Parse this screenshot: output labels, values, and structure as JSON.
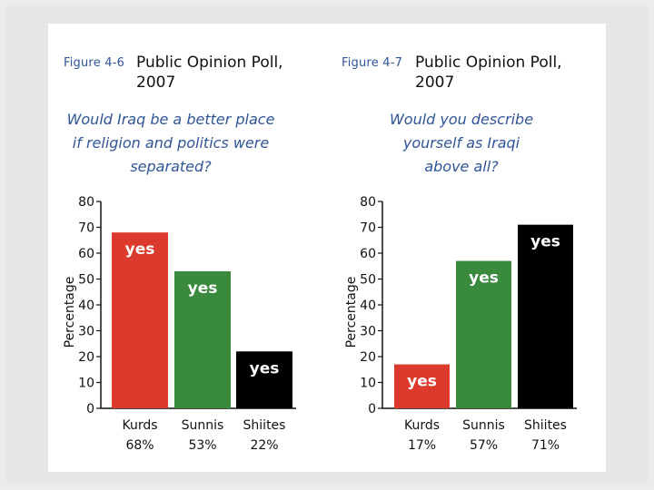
{
  "colors": {
    "kurds": "#dc3a2c",
    "sunnis": "#3a8a3e",
    "shiites": "#000000",
    "accent": "#2f5597"
  },
  "chart_data": [
    {
      "type": "bar",
      "figure_label": "Figure 4-6",
      "title_line1": "Public Opinion Poll,",
      "title_line2": "2007",
      "question_lines": [
        "Would Iraq be a better place",
        "if religion and politics were",
        "separated?"
      ],
      "ylabel": "Percentage",
      "ylim": [
        0,
        80
      ],
      "yticks": [
        "0",
        "10",
        "20",
        "30",
        "40",
        "50",
        "60",
        "70",
        "80"
      ],
      "categories": [
        "Kurds",
        "Sunnis",
        "Shiites"
      ],
      "percent_labels": [
        "68%",
        "53%",
        "22%"
      ],
      "values": [
        68,
        53,
        22
      ],
      "bar_text": "yes"
    },
    {
      "type": "bar",
      "figure_label": "Figure 4-7",
      "title_line1": "Public Opinion Poll,",
      "title_line2": "2007",
      "question_lines": [
        "Would you describe",
        "yourself as Iraqi",
        "above all?"
      ],
      "ylabel": "Percentage",
      "ylim": [
        0,
        80
      ],
      "yticks": [
        "0",
        "10",
        "20",
        "30",
        "40",
        "50",
        "60",
        "70",
        "80"
      ],
      "categories": [
        "Kurds",
        "Sunnis",
        "Shiites"
      ],
      "percent_labels": [
        "17%",
        "57%",
        "71%"
      ],
      "values": [
        17,
        57,
        71
      ],
      "bar_text": "yes"
    }
  ]
}
